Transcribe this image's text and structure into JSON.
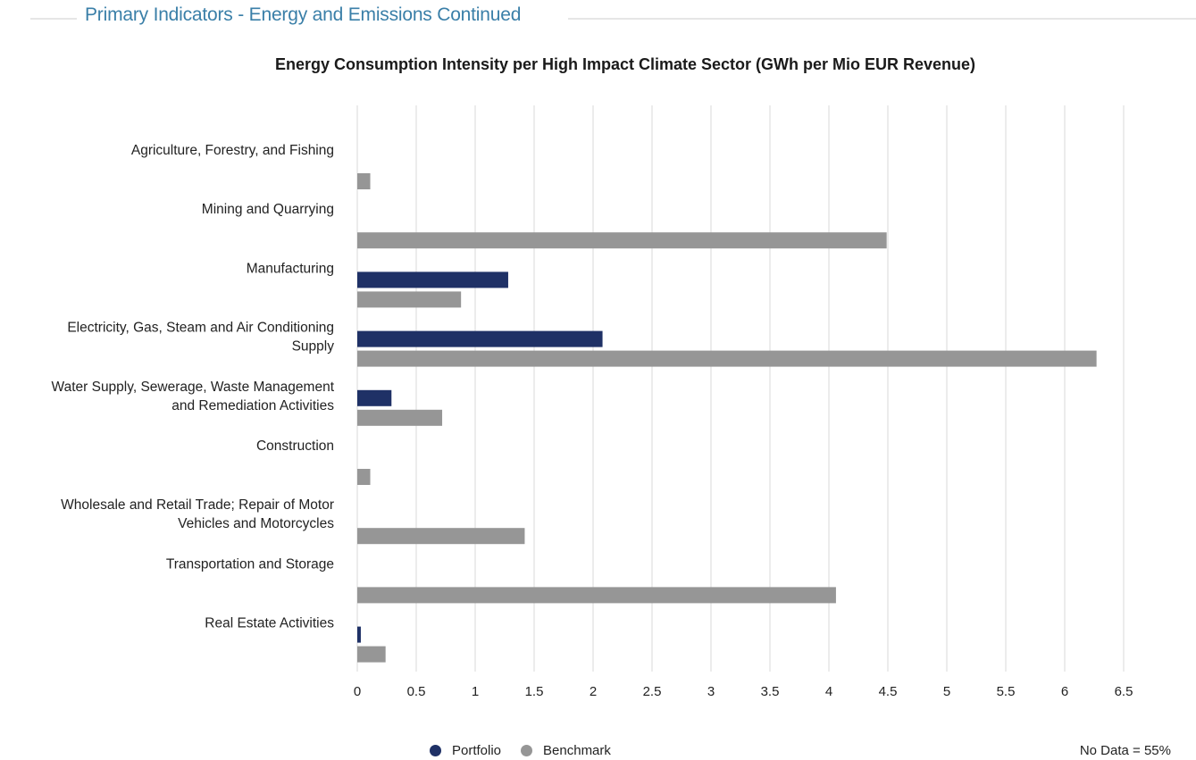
{
  "section": {
    "title": "Primary Indicators - Energy and Emissions Continued"
  },
  "colors": {
    "portfolio": "#1f3166",
    "benchmark": "#969696",
    "grid": "#d9d9d9",
    "header": "#3a7fa8"
  },
  "chart_data": {
    "type": "bar",
    "orientation": "horizontal",
    "title": "Energy Consumption Intensity per High Impact Climate Sector (GWh per Mio EUR Revenue)",
    "categories": [
      [
        "Agriculture, Forestry, and Fishing"
      ],
      [
        "Mining and Quarrying"
      ],
      [
        "Manufacturing"
      ],
      [
        "Electricity, Gas, Steam and Air Conditioning",
        "Supply"
      ],
      [
        "Water Supply, Sewerage, Waste Management",
        "and Remediation Activities"
      ],
      [
        "Construction"
      ],
      [
        "Wholesale and Retail Trade; Repair of Motor",
        "Vehicles and Motorcycles"
      ],
      [
        "Transportation and Storage"
      ],
      [
        "Real Estate Activities"
      ]
    ],
    "series": [
      {
        "name": "Portfolio",
        "values": [
          null,
          null,
          1.28,
          2.08,
          0.29,
          null,
          null,
          null,
          0.03
        ]
      },
      {
        "name": "Benchmark",
        "values": [
          0.11,
          4.49,
          0.88,
          6.27,
          0.72,
          0.11,
          1.42,
          4.06,
          0.24
        ]
      }
    ],
    "xlim": [
      0,
      6.5
    ],
    "xticks": [
      "0",
      "0.5",
      "1",
      "1.5",
      "2",
      "2.5",
      "3",
      "3.5",
      "4",
      "4.5",
      "5",
      "5.5",
      "6",
      "6.5"
    ],
    "grid": true,
    "legend": "bottom-center",
    "note": "No Data = 55%"
  }
}
